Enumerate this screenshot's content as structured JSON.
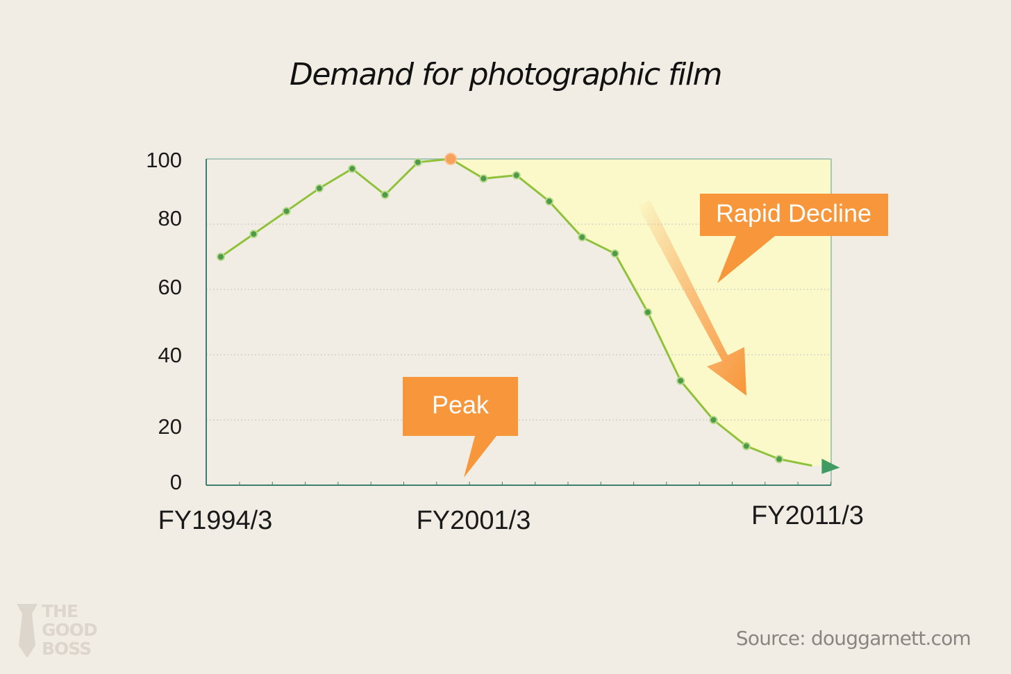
{
  "chart_data": {
    "type": "line",
    "title": "Demand for photographic film",
    "xlabel": "",
    "ylabel": "",
    "ylim": [
      0,
      100
    ],
    "y_ticks": [
      "100",
      "80",
      "60",
      "40",
      "20",
      "0"
    ],
    "x_tick_labels": [
      {
        "label": "FY1994/3",
        "index": 0
      },
      {
        "label": "FY2001/3",
        "index": 7
      },
      {
        "label": "FY2011/3",
        "index": 17
      }
    ],
    "x_minor_ticks": 19,
    "y_gridlines": [
      20,
      40,
      60,
      80
    ],
    "points": [
      70,
      77,
      84,
      91,
      97,
      89,
      99,
      100,
      94,
      95,
      87,
      76,
      71,
      53,
      32,
      20,
      12,
      8,
      6
    ],
    "peak_index": 7,
    "annotations": [
      {
        "text": "Peak",
        "points_to_index": 7
      },
      {
        "text": "Rapid Decline",
        "points_to_index": 13
      }
    ],
    "colors": {
      "line": "#8fc23a",
      "marker_fill": "#4e9a46",
      "marker_stroke": "#b5d98a",
      "peak_marker": "#f6a15c",
      "axis": "#3d7f6e",
      "grid": "#c9d0c4",
      "decline_fill": "#fbf9c9",
      "callout": "#f7963a",
      "callout_text": "#ffffff",
      "tick_label": "#1a1a1a"
    }
  },
  "footer": {
    "source": "Source: douggarnett.com",
    "logo_words": [
      "THE",
      "GOOD",
      "BOSS"
    ]
  }
}
